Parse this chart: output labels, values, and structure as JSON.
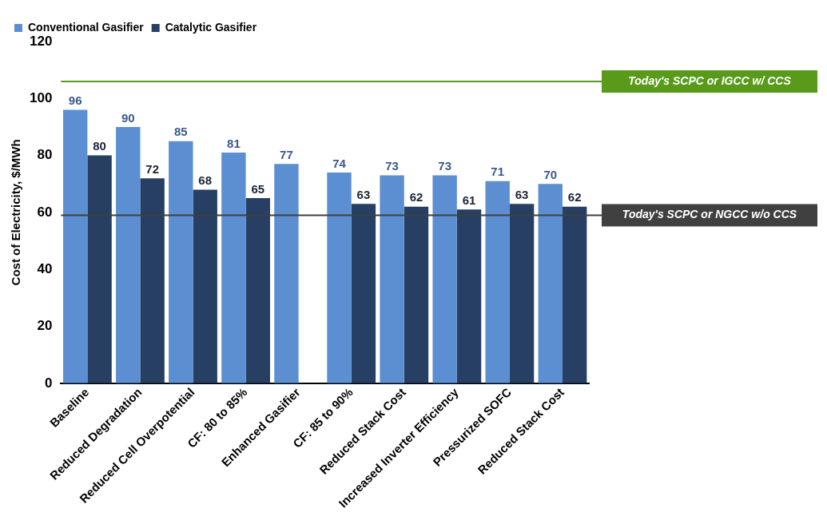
{
  "chart_data": {
    "type": "bar",
    "ylabel": "Cost of Electricity, $/MWh",
    "categories": [
      "Baseline",
      "Reduced Degradation",
      "Reduced Cell Overpotential",
      "CF: 80 to 85%",
      "Enhanced Gasifier",
      "CF: 85 to 90%",
      "Reduced Stack Cost",
      "Increased Inverter Efficiency",
      "Pressurized SOFC",
      "Reduced Stack Cost"
    ],
    "series": [
      {
        "name": "Conventional Gasifier",
        "color": "#5b8fd1",
        "values": [
          96,
          90,
          85,
          81,
          77,
          74,
          73,
          73,
          71,
          70
        ]
      },
      {
        "name": "Catalytic Gasifier",
        "color": "#263f63",
        "values": [
          80,
          72,
          68,
          65,
          null,
          63,
          62,
          61,
          63,
          62
        ]
      }
    ],
    "ylim": [
      0,
      120
    ],
    "yticks": [
      0,
      20,
      40,
      60,
      80,
      100,
      120
    ],
    "grid": false,
    "legend": "top left",
    "data_labels": true,
    "ref_lines": [
      {
        "axis": "y",
        "value": 106,
        "label": "Today's SCPC or IGCC w/ CCS",
        "color": "#5a9a1a"
      },
      {
        "axis": "y",
        "value": 59,
        "label": "Today's SCPC or NGCC w/o CCS",
        "color": "#404040"
      }
    ]
  }
}
